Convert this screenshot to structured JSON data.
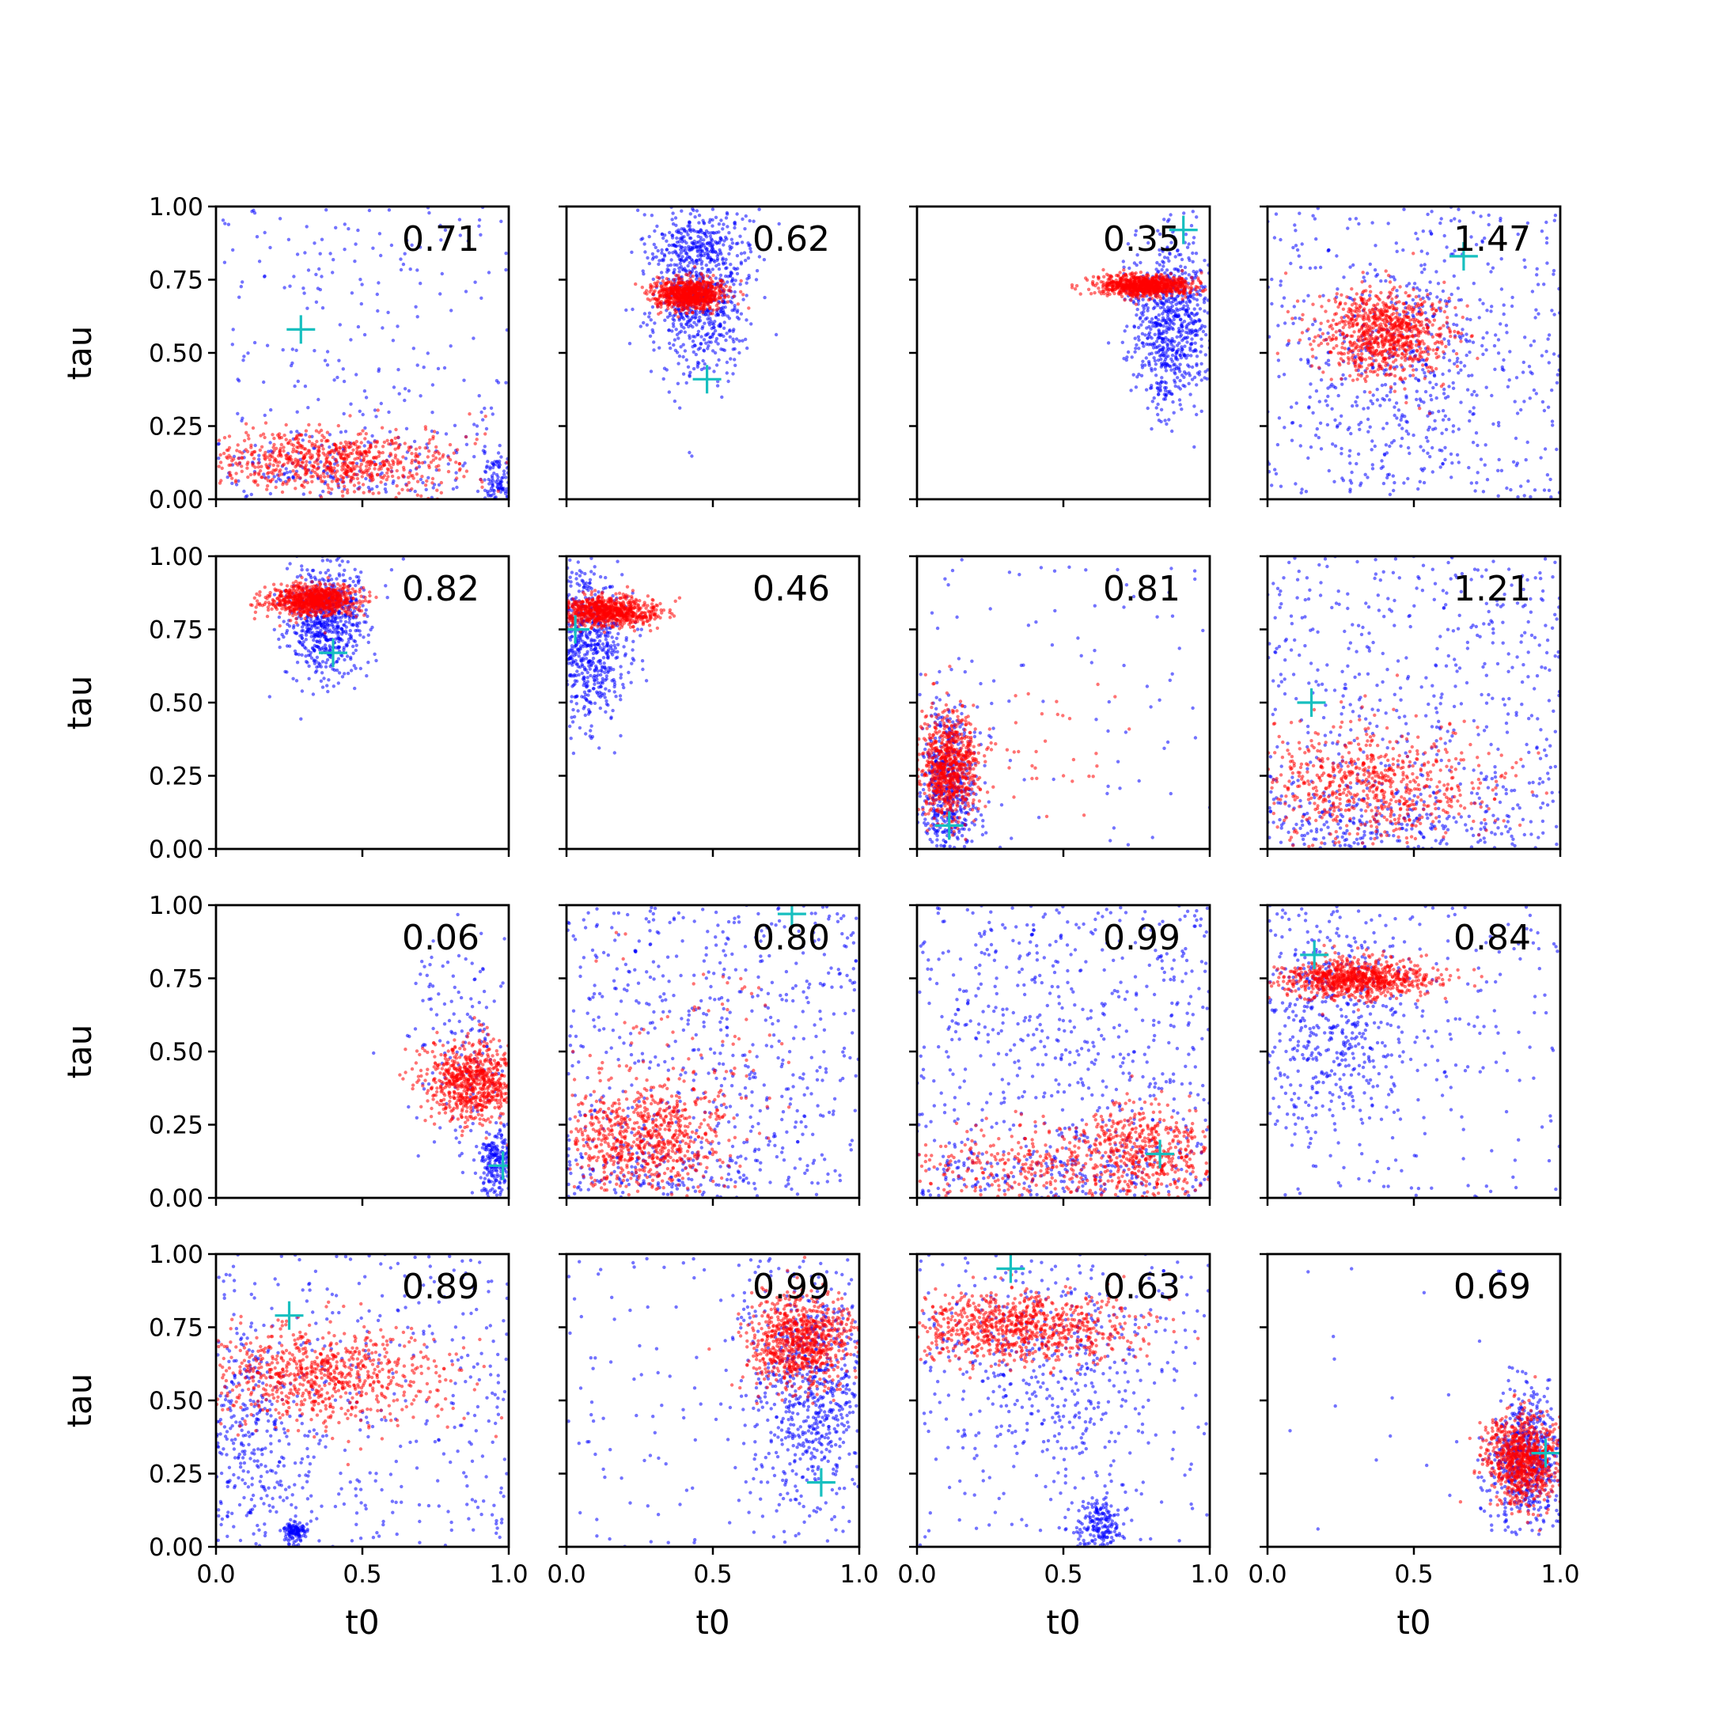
{
  "colors": {
    "posterior": "#0000ff",
    "prior": "#ff0000",
    "truth_marker": "#17bfbf",
    "axes": "#000000",
    "background": "#ffffff"
  },
  "chart_data": {
    "type": "scatter",
    "layout": "4x4 grid of scatter panels, shared x and y axes",
    "xlabel": "t0",
    "ylabel": "tau",
    "xlim": [
      0.0,
      1.0
    ],
    "ylim": [
      0.0,
      1.0
    ],
    "x_ticks": [
      "0.0",
      "0.5",
      "1.0"
    ],
    "y_ticks": [
      "0.00",
      "0.25",
      "0.50",
      "0.75",
      "1.00"
    ],
    "grid": false,
    "legend": "none",
    "marker_legend": {
      "posterior": "blue dots",
      "prior": "red dots",
      "truth_marker": "cyan plus"
    },
    "panels": [
      {
        "label": "0.71",
        "truth": [
          0.29,
          0.58
        ],
        "blue_clusters": [
          {
            "n": 260,
            "mode": "uniform",
            "x0": 0.0,
            "x1": 1.0,
            "y0": 0.0,
            "y1": 1.0
          },
          {
            "n": 120,
            "cx": 0.97,
            "cy": 0.05,
            "sx": 0.03,
            "sy": 0.05
          },
          {
            "n": 140,
            "cx": 0.35,
            "cy": 0.1,
            "sx": 0.2,
            "sy": 0.06
          }
        ],
        "red_clusters": [
          {
            "n": 750,
            "cx": 0.4,
            "cy": 0.13,
            "sx": 0.21,
            "sy": 0.055
          }
        ]
      },
      {
        "label": "0.62",
        "truth": [
          0.48,
          0.41
        ],
        "blue_clusters": [
          {
            "n": 600,
            "cx": 0.45,
            "cy": 0.68,
            "sx": 0.08,
            "sy": 0.13
          },
          {
            "n": 250,
            "cx": 0.46,
            "cy": 0.88,
            "sx": 0.08,
            "sy": 0.06
          }
        ],
        "red_clusters": [
          {
            "n": 850,
            "cx": 0.42,
            "cy": 0.7,
            "sx": 0.06,
            "sy": 0.025
          }
        ]
      },
      {
        "label": "0.35",
        "truth": [
          0.91,
          0.92
        ],
        "blue_clusters": [
          {
            "n": 750,
            "cx": 0.87,
            "cy": 0.6,
            "sx": 0.07,
            "sy": 0.15
          }
        ],
        "red_clusters": [
          {
            "n": 850,
            "cx": 0.78,
            "cy": 0.73,
            "sx": 0.08,
            "sy": 0.018
          }
        ]
      },
      {
        "label": "1.47",
        "truth": [
          0.67,
          0.83
        ],
        "blue_clusters": [
          {
            "n": 420,
            "mode": "uniform",
            "x0": 0.0,
            "x1": 1.0,
            "y0": 0.0,
            "y1": 1.0
          },
          {
            "n": 300,
            "cx": 0.45,
            "cy": 0.45,
            "sx": 0.15,
            "sy": 0.2
          }
        ],
        "red_clusters": [
          {
            "n": 850,
            "cx": 0.4,
            "cy": 0.57,
            "sx": 0.11,
            "sy": 0.075
          }
        ]
      },
      {
        "label": "0.82",
        "truth": [
          0.4,
          0.67
        ],
        "blue_clusters": [
          {
            "n": 650,
            "cx": 0.37,
            "cy": 0.78,
            "sx": 0.07,
            "sy": 0.1
          }
        ],
        "red_clusters": [
          {
            "n": 850,
            "cx": 0.33,
            "cy": 0.85,
            "sx": 0.07,
            "sy": 0.025
          }
        ]
      },
      {
        "label": "0.46",
        "truth": [
          0.03,
          0.75
        ],
        "blue_clusters": [
          {
            "n": 650,
            "cx": 0.07,
            "cy": 0.7,
            "sx": 0.07,
            "sy": 0.13
          }
        ],
        "red_clusters": [
          {
            "n": 850,
            "cx": 0.13,
            "cy": 0.81,
            "sx": 0.09,
            "sy": 0.025
          }
        ]
      },
      {
        "label": "0.81",
        "truth": [
          0.11,
          0.08
        ],
        "blue_clusters": [
          {
            "n": 500,
            "cx": 0.1,
            "cy": 0.22,
            "sx": 0.05,
            "sy": 0.13
          },
          {
            "n": 90,
            "mode": "uniform",
            "x0": 0.0,
            "x1": 1.0,
            "y0": 0.0,
            "y1": 1.0
          }
        ],
        "red_clusters": [
          {
            "n": 750,
            "cx": 0.11,
            "cy": 0.28,
            "sx": 0.05,
            "sy": 0.09
          },
          {
            "n": 40,
            "cx": 0.4,
            "cy": 0.35,
            "sx": 0.15,
            "sy": 0.12
          }
        ]
      },
      {
        "label": "1.21",
        "truth": [
          0.15,
          0.5
        ],
        "blue_clusters": [
          {
            "n": 520,
            "mode": "uniform",
            "x0": 0.0,
            "x1": 1.0,
            "y0": 0.0,
            "y1": 1.0
          },
          {
            "n": 250,
            "cx": 0.35,
            "cy": 0.1,
            "sx": 0.25,
            "sy": 0.07
          }
        ],
        "red_clusters": [
          {
            "n": 700,
            "cx": 0.35,
            "cy": 0.22,
            "sx": 0.22,
            "sy": 0.1
          }
        ]
      },
      {
        "label": "0.06",
        "truth": [
          0.98,
          0.11
        ],
        "blue_clusters": [
          {
            "n": 220,
            "cx": 0.96,
            "cy": 0.12,
            "sx": 0.03,
            "sy": 0.06
          },
          {
            "n": 150,
            "cx": 0.85,
            "cy": 0.5,
            "sx": 0.1,
            "sy": 0.18
          }
        ],
        "red_clusters": [
          {
            "n": 750,
            "cx": 0.88,
            "cy": 0.4,
            "sx": 0.08,
            "sy": 0.07
          }
        ]
      },
      {
        "label": "0.80",
        "truth": [
          0.77,
          0.97
        ],
        "blue_clusters": [
          {
            "n": 600,
            "mode": "uniform",
            "x0": 0.0,
            "x1": 1.0,
            "y0": 0.0,
            "y1": 1.0
          },
          {
            "n": 150,
            "cx": 0.3,
            "cy": 0.08,
            "sx": 0.25,
            "sy": 0.05
          }
        ],
        "red_clusters": [
          {
            "n": 700,
            "cx": 0.25,
            "cy": 0.2,
            "sx": 0.15,
            "sy": 0.09
          },
          {
            "n": 120,
            "cx": 0.45,
            "cy": 0.45,
            "sx": 0.2,
            "sy": 0.2
          }
        ]
      },
      {
        "label": "0.99",
        "truth": [
          0.83,
          0.15
        ],
        "blue_clusters": [
          {
            "n": 650,
            "mode": "uniform",
            "x0": 0.0,
            "x1": 1.0,
            "y0": 0.0,
            "y1": 1.0
          },
          {
            "n": 150,
            "cx": 0.5,
            "cy": 0.08,
            "sx": 0.3,
            "sy": 0.06
          }
        ],
        "red_clusters": [
          {
            "n": 500,
            "cx": 0.78,
            "cy": 0.15,
            "sx": 0.12,
            "sy": 0.08
          },
          {
            "n": 300,
            "cx": 0.35,
            "cy": 0.1,
            "sx": 0.2,
            "sy": 0.07
          }
        ]
      },
      {
        "label": "0.84",
        "truth": [
          0.16,
          0.83
        ],
        "blue_clusters": [
          {
            "n": 500,
            "cx": 0.22,
            "cy": 0.6,
            "sx": 0.15,
            "sy": 0.2
          },
          {
            "n": 200,
            "mode": "uniform",
            "x0": 0.0,
            "x1": 1.0,
            "y0": 0.0,
            "y1": 1.0
          }
        ],
        "red_clusters": [
          {
            "n": 850,
            "cx": 0.3,
            "cy": 0.75,
            "sx": 0.13,
            "sy": 0.035
          }
        ]
      },
      {
        "label": "0.89",
        "truth": [
          0.25,
          0.79
        ],
        "blue_clusters": [
          {
            "n": 400,
            "mode": "uniform",
            "x0": 0.0,
            "x1": 1.0,
            "y0": 0.0,
            "y1": 1.0
          },
          {
            "n": 250,
            "cx": 0.1,
            "cy": 0.4,
            "sx": 0.08,
            "sy": 0.2
          },
          {
            "n": 120,
            "cx": 0.27,
            "cy": 0.05,
            "sx": 0.02,
            "sy": 0.02
          }
        ],
        "red_clusters": [
          {
            "n": 800,
            "cx": 0.35,
            "cy": 0.58,
            "sx": 0.22,
            "sy": 0.08
          }
        ]
      },
      {
        "label": "0.99",
        "truth": [
          0.87,
          0.22
        ],
        "blue_clusters": [
          {
            "n": 650,
            "cx": 0.83,
            "cy": 0.55,
            "sx": 0.1,
            "sy": 0.2
          },
          {
            "n": 150,
            "mode": "uniform",
            "x0": 0.0,
            "x1": 1.0,
            "y0": 0.0,
            "y1": 1.0
          }
        ],
        "red_clusters": [
          {
            "n": 800,
            "cx": 0.8,
            "cy": 0.7,
            "sx": 0.09,
            "sy": 0.08
          }
        ]
      },
      {
        "label": "0.63",
        "truth": [
          0.32,
          0.95
        ],
        "blue_clusters": [
          {
            "n": 350,
            "cx": 0.45,
            "cy": 0.6,
            "sx": 0.2,
            "sy": 0.18
          },
          {
            "n": 200,
            "cx": 0.62,
            "cy": 0.08,
            "sx": 0.04,
            "sy": 0.06
          },
          {
            "n": 200,
            "mode": "uniform",
            "x0": 0.0,
            "x1": 1.0,
            "y0": 0.0,
            "y1": 1.0
          }
        ],
        "red_clusters": [
          {
            "n": 850,
            "cx": 0.35,
            "cy": 0.75,
            "sx": 0.2,
            "sy": 0.06
          }
        ]
      },
      {
        "label": "0.69",
        "truth": [
          0.95,
          0.32
        ],
        "blue_clusters": [
          {
            "n": 550,
            "cx": 0.88,
            "cy": 0.3,
            "sx": 0.06,
            "sy": 0.12
          },
          {
            "n": 20,
            "mode": "uniform",
            "x0": 0.0,
            "x1": 1.0,
            "y0": 0.0,
            "y1": 1.0
          }
        ],
        "red_clusters": [
          {
            "n": 850,
            "cx": 0.87,
            "cy": 0.3,
            "sx": 0.06,
            "sy": 0.075
          }
        ]
      }
    ]
  }
}
